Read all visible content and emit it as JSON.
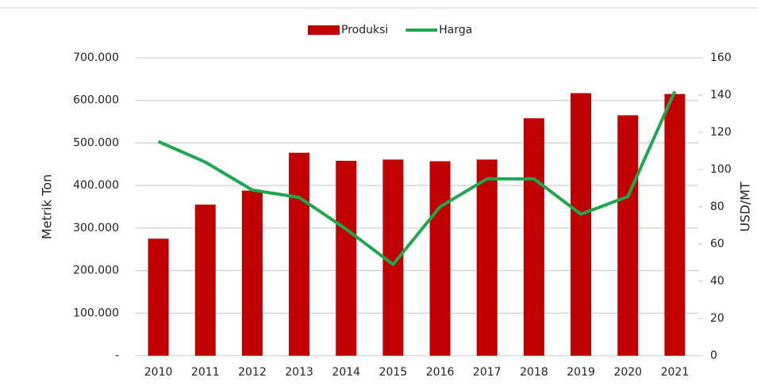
{
  "chart_data": {
    "type": "bar-line",
    "categories": [
      "2010",
      "2011",
      "2012",
      "2013",
      "2014",
      "2015",
      "2016",
      "2017",
      "2018",
      "2019",
      "2020",
      "2021"
    ],
    "series": [
      {
        "name": "Produksi",
        "type": "bar",
        "color": "#c00000",
        "values": [
          275000,
          355000,
          388000,
          477000,
          458000,
          461000,
          457000,
          461000,
          558000,
          617000,
          565000,
          615000
        ]
      },
      {
        "name": "Harga",
        "type": "line",
        "axis": "y2",
        "color": "#1fa750",
        "values": [
          115,
          104,
          89,
          85,
          68,
          49,
          80,
          95,
          95,
          76,
          85.5,
          142
        ]
      }
    ],
    "y_label": "Metrik Ton",
    "y2_label": "USD/MT",
    "ylim": [
      0,
      700000
    ],
    "yticks": [
      {
        "value": 0,
        "label": "-"
      },
      {
        "value": 100000,
        "label": "100.000"
      },
      {
        "value": 200000,
        "label": "200.000"
      },
      {
        "value": 300000,
        "label": "300.000"
      },
      {
        "value": 400000,
        "label": "400.000"
      },
      {
        "value": 500000,
        "label": "500.000"
      },
      {
        "value": 600000,
        "label": "600.000"
      },
      {
        "value": 700000,
        "label": "700.000"
      }
    ],
    "y2lim": [
      0,
      160
    ],
    "y2ticks": [
      0,
      20,
      40,
      60,
      80,
      100,
      120,
      140,
      160
    ],
    "grid": true,
    "legend": "top"
  }
}
